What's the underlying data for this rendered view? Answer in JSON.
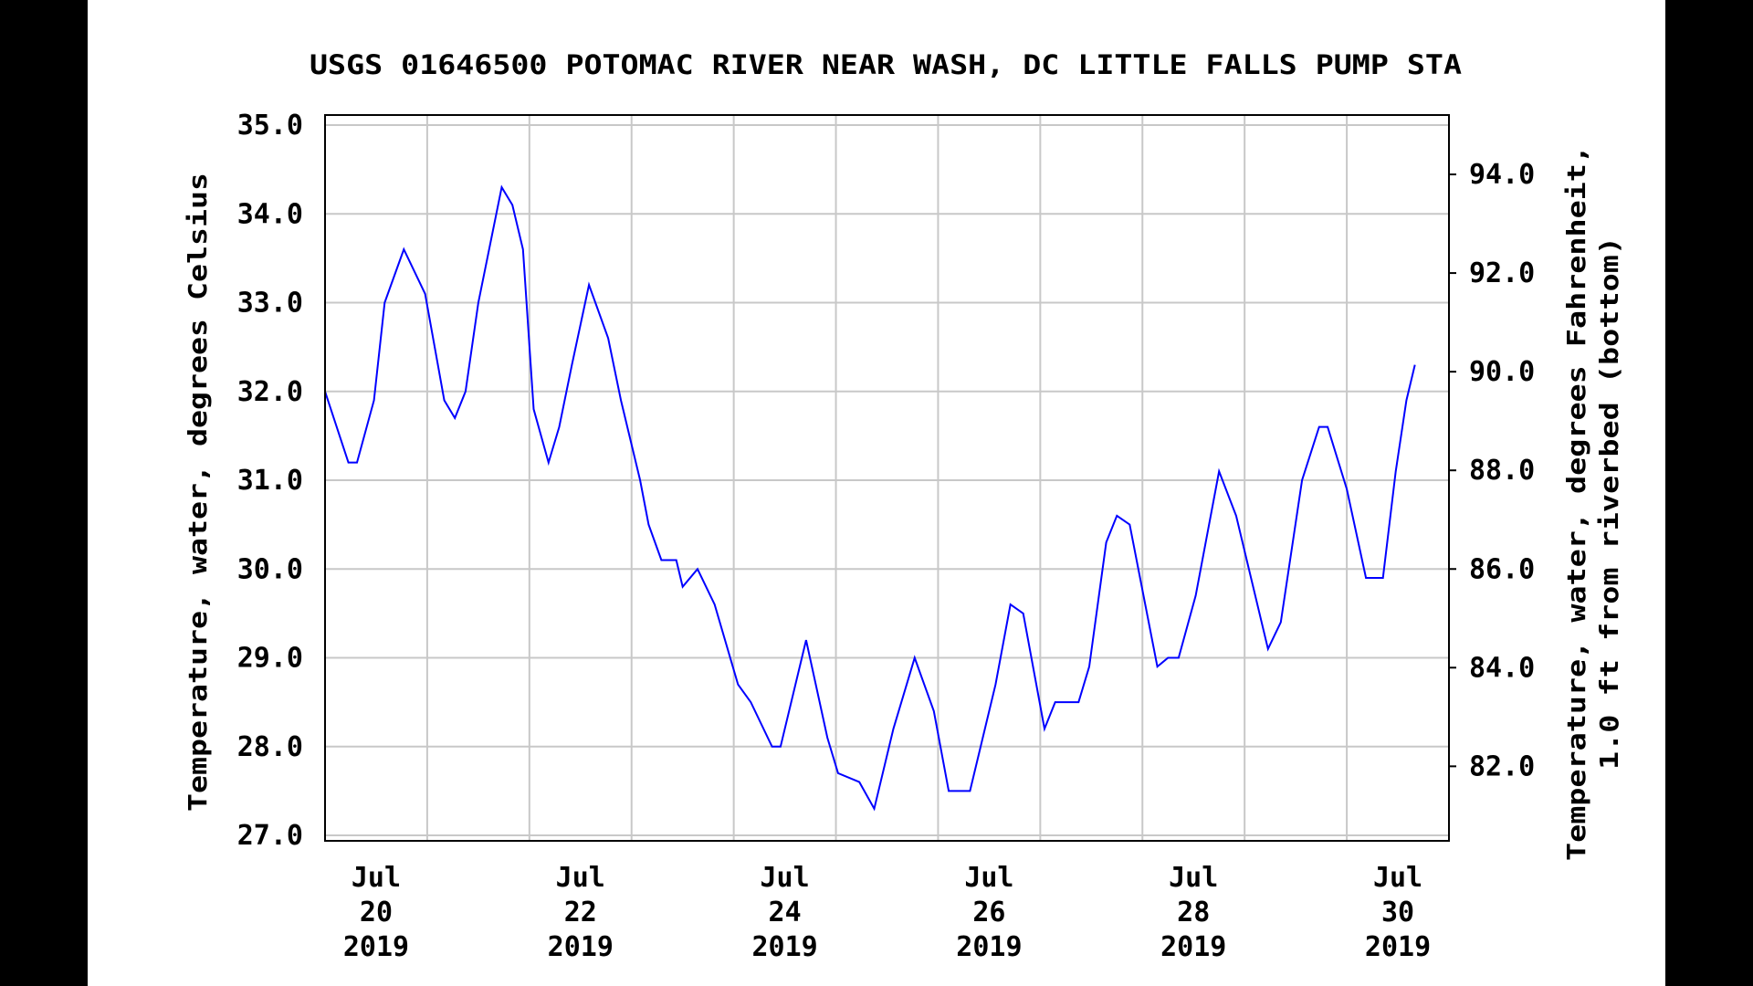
{
  "chart_data": {
    "type": "line",
    "title": "USGS 01646500 POTOMAC RIVER NEAR WASH, DC LITTLE FALLS PUMP STA",
    "ylabel": "Temperature, water, degrees Celsius",
    "ylabel_right": [
      "Temperature, water, degrees Fahrenheit,",
      "1.0 ft from riverbed (bottom)"
    ],
    "ylim": [
      27.0,
      35.0
    ],
    "yticks": [
      "27.0",
      "28.0",
      "29.0",
      "30.0",
      "31.0",
      "32.0",
      "33.0",
      "34.0",
      "35.0"
    ],
    "yticks_right": [
      "82.0",
      "84.0",
      "86.0",
      "88.0",
      "90.0",
      "92.0",
      "94.0"
    ],
    "xlim": [
      "2019-07-20T00:00",
      "2019-07-31T00:00"
    ],
    "xticks": [
      {
        "date": "2019-07-20T12:00",
        "month": "Jul",
        "day": "20",
        "year": "2019"
      },
      {
        "date": "2019-07-22T12:00",
        "month": "Jul",
        "day": "22",
        "year": "2019"
      },
      {
        "date": "2019-07-24T12:00",
        "month": "Jul",
        "day": "24",
        "year": "2019"
      },
      {
        "date": "2019-07-26T12:00",
        "month": "Jul",
        "day": "26",
        "year": "2019"
      },
      {
        "date": "2019-07-28T12:00",
        "month": "Jul",
        "day": "28",
        "year": "2019"
      },
      {
        "date": "2019-07-30T12:00",
        "month": "Jul",
        "day": "30",
        "year": "2019"
      }
    ],
    "grid": true,
    "line_color": "#0000ff",
    "series": [
      {
        "points": [
          [
            "2019-07-20T00:00",
            32.0
          ],
          [
            "2019-07-20T05:30",
            31.2
          ],
          [
            "2019-07-20T07:30",
            31.2
          ],
          [
            "2019-07-20T11:30",
            31.9
          ],
          [
            "2019-07-20T14:00",
            33.0
          ],
          [
            "2019-07-20T18:30",
            33.6
          ],
          [
            "2019-07-20T23:30",
            33.1
          ],
          [
            "2019-07-21T04:00",
            31.9
          ],
          [
            "2019-07-21T06:30",
            31.7
          ],
          [
            "2019-07-21T09:00",
            32.0
          ],
          [
            "2019-07-21T12:00",
            33.0
          ],
          [
            "2019-07-21T17:30",
            34.3
          ],
          [
            "2019-07-21T20:00",
            34.1
          ],
          [
            "2019-07-21T22:30",
            33.6
          ],
          [
            "2019-07-22T01:00",
            31.8
          ],
          [
            "2019-07-22T04:30",
            31.2
          ],
          [
            "2019-07-22T07:00",
            31.6
          ],
          [
            "2019-07-22T10:00",
            32.3
          ],
          [
            "2019-07-22T14:00",
            33.2
          ],
          [
            "2019-07-22T18:30",
            32.6
          ],
          [
            "2019-07-22T21:30",
            31.9
          ],
          [
            "2019-07-23T02:00",
            31.0
          ],
          [
            "2019-07-23T04:00",
            30.5
          ],
          [
            "2019-07-23T07:00",
            30.1
          ],
          [
            "2019-07-23T10:30",
            30.1
          ],
          [
            "2019-07-23T12:00",
            29.8
          ],
          [
            "2019-07-23T15:30",
            30.0
          ],
          [
            "2019-07-23T19:30",
            29.6
          ],
          [
            "2019-07-24T01:00",
            28.7
          ],
          [
            "2019-07-24T04:00",
            28.5
          ],
          [
            "2019-07-24T09:00",
            28.0
          ],
          [
            "2019-07-24T11:00",
            28.0
          ],
          [
            "2019-07-24T17:00",
            29.2
          ],
          [
            "2019-07-24T22:00",
            28.1
          ],
          [
            "2019-07-25T00:30",
            27.7
          ],
          [
            "2019-07-25T05:30",
            27.6
          ],
          [
            "2019-07-25T09:00",
            27.3
          ],
          [
            "2019-07-25T13:30",
            28.2
          ],
          [
            "2019-07-25T18:30",
            29.0
          ],
          [
            "2019-07-25T23:00",
            28.4
          ],
          [
            "2019-07-26T02:30",
            27.5
          ],
          [
            "2019-07-26T07:30",
            27.5
          ],
          [
            "2019-07-26T13:30",
            28.7
          ],
          [
            "2019-07-26T17:00",
            29.6
          ],
          [
            "2019-07-26T20:00",
            29.5
          ],
          [
            "2019-07-27T01:00",
            28.2
          ],
          [
            "2019-07-27T03:30",
            28.5
          ],
          [
            "2019-07-27T09:00",
            28.5
          ],
          [
            "2019-07-27T11:30",
            28.9
          ],
          [
            "2019-07-27T15:30",
            30.3
          ],
          [
            "2019-07-27T18:00",
            30.6
          ],
          [
            "2019-07-27T21:00",
            30.5
          ],
          [
            "2019-07-28T03:30",
            28.9
          ],
          [
            "2019-07-28T06:00",
            29.0
          ],
          [
            "2019-07-28T08:30",
            29.0
          ],
          [
            "2019-07-28T12:30",
            29.7
          ],
          [
            "2019-07-28T18:00",
            31.1
          ],
          [
            "2019-07-28T22:00",
            30.6
          ],
          [
            "2019-07-29T01:30",
            29.9
          ],
          [
            "2019-07-29T05:30",
            29.1
          ],
          [
            "2019-07-29T08:30",
            29.4
          ],
          [
            "2019-07-29T13:30",
            31.0
          ],
          [
            "2019-07-29T17:30",
            31.6
          ],
          [
            "2019-07-29T19:30",
            31.6
          ],
          [
            "2019-07-30T00:00",
            30.9
          ],
          [
            "2019-07-30T04:30",
            29.9
          ],
          [
            "2019-07-30T08:30",
            29.9
          ],
          [
            "2019-07-30T11:30",
            31.1
          ],
          [
            "2019-07-30T14:00",
            31.9
          ],
          [
            "2019-07-30T16:00",
            32.3
          ]
        ]
      }
    ]
  }
}
